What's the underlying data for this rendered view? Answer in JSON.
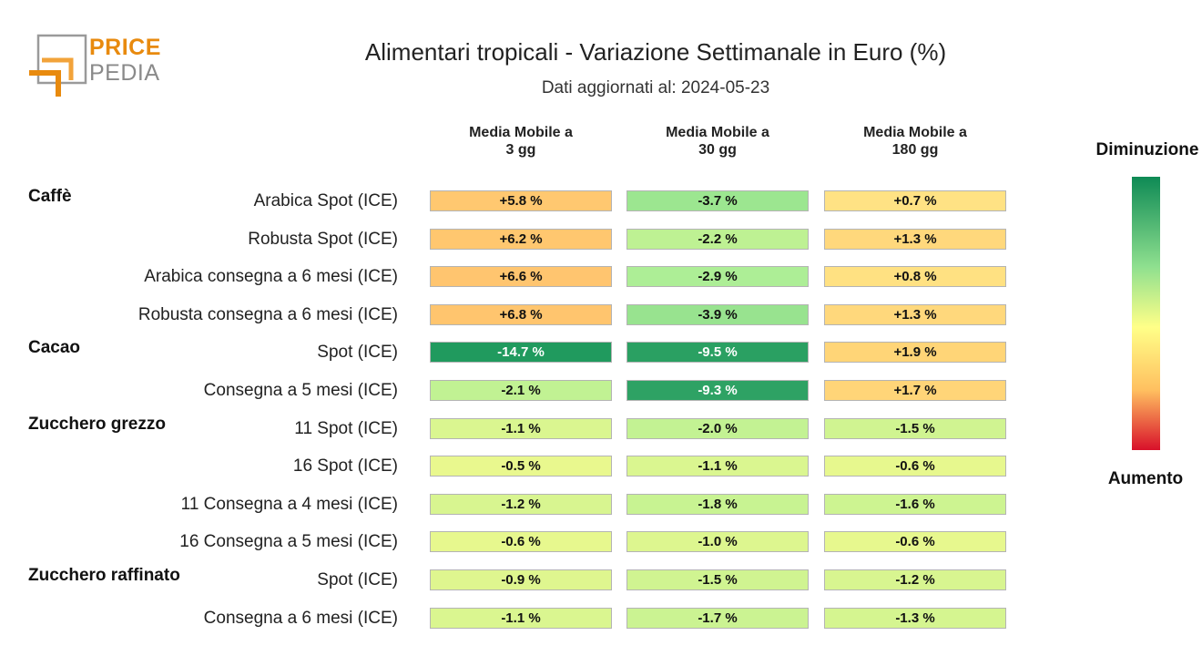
{
  "logo": {
    "word1": "PRICE",
    "word2": "PEDIA"
  },
  "title": "Alimentari tropicali - Variazione Settimanale in Euro (%)",
  "subtitle": "Dati aggiornati al: 2024-05-23",
  "colors": {
    "strong_decrease": "#0e8a55",
    "neutral": "#ffff88",
    "increase": "#ffc060",
    "strong_increase": "#d8102a"
  },
  "legend": {
    "top": "Diminuzione",
    "bottom": "Aumento"
  },
  "chart_data": {
    "type": "heatmap",
    "title": "Alimentari tropicali - Variazione Settimanale in Euro (%)",
    "columns": [
      "Media Mobile a\n3 gg",
      "Media Mobile a\n30 gg",
      "Media Mobile a\n180 gg"
    ],
    "groups": [
      {
        "name": "Caffè",
        "rows": [
          {
            "label": "Arabica Spot (ICE)",
            "values": [
              5.8,
              -3.7,
              0.7
            ]
          },
          {
            "label": "Robusta Spot (ICE)",
            "values": [
              6.2,
              -2.2,
              1.3
            ]
          },
          {
            "label": "Arabica consegna a 6 mesi (ICE)",
            "values": [
              6.6,
              -2.9,
              0.8
            ]
          },
          {
            "label": "Robusta consegna a 6 mesi (ICE)",
            "values": [
              6.8,
              -3.9,
              1.3
            ]
          }
        ]
      },
      {
        "name": "Cacao",
        "rows": [
          {
            "label": "Spot (ICE)",
            "values": [
              -14.7,
              -9.5,
              1.9
            ]
          },
          {
            "label": "Consegna a 5 mesi (ICE)",
            "values": [
              -2.1,
              -9.3,
              1.7
            ]
          }
        ]
      },
      {
        "name": "Zucchero grezzo",
        "rows": [
          {
            "label": "11 Spot (ICE)",
            "values": [
              -1.1,
              -2.0,
              -1.5
            ]
          },
          {
            "label": "16 Spot (ICE)",
            "values": [
              -0.5,
              -1.1,
              -0.6
            ]
          },
          {
            "label": "11 Consegna a 4 mesi (ICE)",
            "values": [
              -1.2,
              -1.8,
              -1.6
            ]
          },
          {
            "label": "16 Consegna a 5 mesi (ICE)",
            "values": [
              -0.6,
              -1.0,
              -0.6
            ]
          }
        ]
      },
      {
        "name": "Zucchero raffinato",
        "rows": [
          {
            "label": "Spot (ICE)",
            "values": [
              -0.9,
              -1.5,
              -1.2
            ]
          },
          {
            "label": "Consegna a 6 mesi (ICE)",
            "values": [
              -1.1,
              -1.7,
              -1.3
            ]
          }
        ]
      }
    ]
  }
}
